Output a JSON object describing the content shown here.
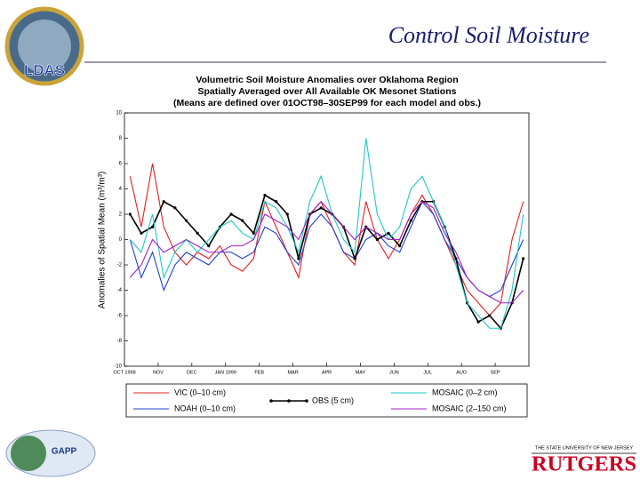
{
  "slide": {
    "title": "Control Soil Moisture"
  },
  "logos": {
    "ldas": "LDAS",
    "gapp": "GAPP",
    "rutgers_top": "THE STATE UNIVERSITY OF NEW JERSEY",
    "rutgers": "RUTGERS"
  },
  "chart_data": {
    "type": "line",
    "title": [
      "Volumetric Soil Moisture Anomalies over Oklahoma Region",
      "Spatially Averaged over All Available OK Mesonet Stations",
      "(Means are defined over 01OCT98–30SEP99 for each model and obs.)"
    ],
    "y_label": "Anomalies of Spatial Mean (m³/m³)",
    "categories": [
      "OCT 1998",
      null,
      null,
      "NOV",
      null,
      null,
      "DEC",
      null,
      null,
      "JAN 1999",
      null,
      null,
      "FEB",
      null,
      null,
      "MAR",
      null,
      null,
      "APR",
      null,
      null,
      "MAY",
      null,
      null,
      "JUN",
      null,
      null,
      "JUL",
      null,
      null,
      "AUG",
      null,
      null,
      "SEP",
      null,
      null
    ],
    "ylim": [
      -10,
      10
    ],
    "yticks": [
      -10,
      -8,
      -6,
      -4,
      -2,
      0,
      2,
      4,
      6,
      8,
      10
    ],
    "series": [
      {
        "name": "VIC (0–10 cm)",
        "color": "#e02020",
        "values": [
          5,
          1,
          6,
          1,
          -1,
          -2,
          -1,
          -1.5,
          -0.5,
          -2,
          -2.5,
          -1.5,
          3,
          1,
          -1,
          -3,
          2,
          3,
          1,
          -1,
          -2,
          3,
          0,
          -1.5,
          0,
          2,
          3.5,
          2,
          0,
          -2,
          -4,
          -5,
          -6,
          -5,
          0,
          3
        ]
      },
      {
        "name": "NOAH (0–10 cm)",
        "color": "#2040d0",
        "values": [
          0,
          -3,
          -1,
          -4,
          -2,
          -1,
          -1.5,
          -2,
          -1,
          -1,
          -1.5,
          -1,
          1,
          0.5,
          -1,
          -2,
          1,
          2,
          1,
          -1,
          -1.5,
          0,
          0.5,
          -0.5,
          -1,
          1,
          3,
          2,
          0,
          -1.5,
          -3,
          -4,
          -4.5,
          -4,
          -2,
          0
        ]
      },
      {
        "name": "OBS (5 cm)",
        "color": "#000000",
        "marker": true,
        "values": [
          2,
          0.5,
          1,
          3,
          2.5,
          1.5,
          0.5,
          -0.5,
          1,
          2,
          1.5,
          0.5,
          3.5,
          3,
          2,
          -1.5,
          2,
          2.5,
          2,
          1,
          -1.5,
          1,
          0,
          0.5,
          -0.5,
          1.5,
          3,
          3,
          1,
          -1.5,
          -5,
          -6.5,
          -6,
          -7,
          -5,
          -1.5
        ]
      },
      {
        "name": "MOSAIC (0–2 cm)",
        "color": "#20c8c8",
        "values": [
          0,
          -1,
          2,
          -3,
          -1,
          0,
          -1,
          0,
          1,
          1.5,
          0.5,
          0,
          3,
          2.5,
          1,
          -1,
          3,
          5,
          2,
          0,
          -1,
          8,
          2,
          0,
          1,
          4,
          5,
          3,
          1,
          -2,
          -5,
          -6,
          -7,
          -7,
          -4,
          2
        ]
      },
      {
        "name": "MOSAIC (2–150 cm)",
        "color": "#a020c0",
        "values": [
          -3,
          -2,
          0,
          -1,
          -0.5,
          0,
          -0.5,
          -1,
          -1,
          -0.5,
          -0.5,
          0,
          2,
          1.5,
          1,
          0,
          2,
          3,
          2,
          1,
          0,
          1,
          0.5,
          0,
          0,
          2,
          3,
          2.5,
          0.5,
          -1,
          -3,
          -4,
          -4.5,
          -5,
          -5,
          -4
        ]
      }
    ]
  }
}
